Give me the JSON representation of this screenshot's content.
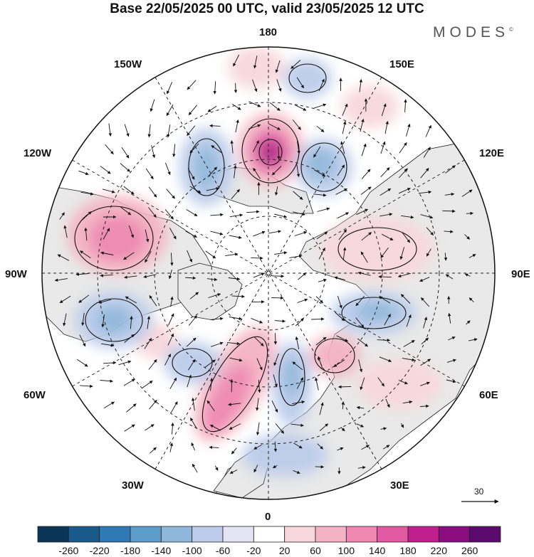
{
  "header": {
    "title": "Base 22/05/2025 00 UTC, valid 23/05/2025 12 UTC",
    "brand": "MODES",
    "brand_mark": "©"
  },
  "longitude_labels": {
    "top": "180",
    "bottom": "0",
    "left": "90W",
    "right": "90E",
    "upper_left_1": "150W",
    "upper_left_2": "120W",
    "lower_left_1": "60W",
    "lower_left_2": "30W",
    "upper_right_1": "150E",
    "upper_right_2": "120E",
    "lower_right_1": "60E",
    "lower_right_2": "30E"
  },
  "reference_vector": {
    "value": "30"
  },
  "colorbar": {
    "ticks": [
      "-260",
      "-220",
      "-180",
      "-140",
      "-100",
      "-60",
      "-20",
      "20",
      "60",
      "100",
      "140",
      "180",
      "220",
      "260"
    ],
    "colors": [
      "#0b3556",
      "#1a5a8a",
      "#2f7ab5",
      "#5d9ccb",
      "#8fb7dc",
      "#bcccea",
      "#e4e4f4",
      "#ffffff",
      "#f8d7dc",
      "#f4b3c4",
      "#ef87b0",
      "#e25aa2",
      "#c11e8e",
      "#8a0d7f",
      "#5b0b6e"
    ]
  },
  "colors": {
    "land": "#e9e9e9",
    "ocean": "#ffffff",
    "coast": "#222222",
    "grid": "#222222"
  }
}
